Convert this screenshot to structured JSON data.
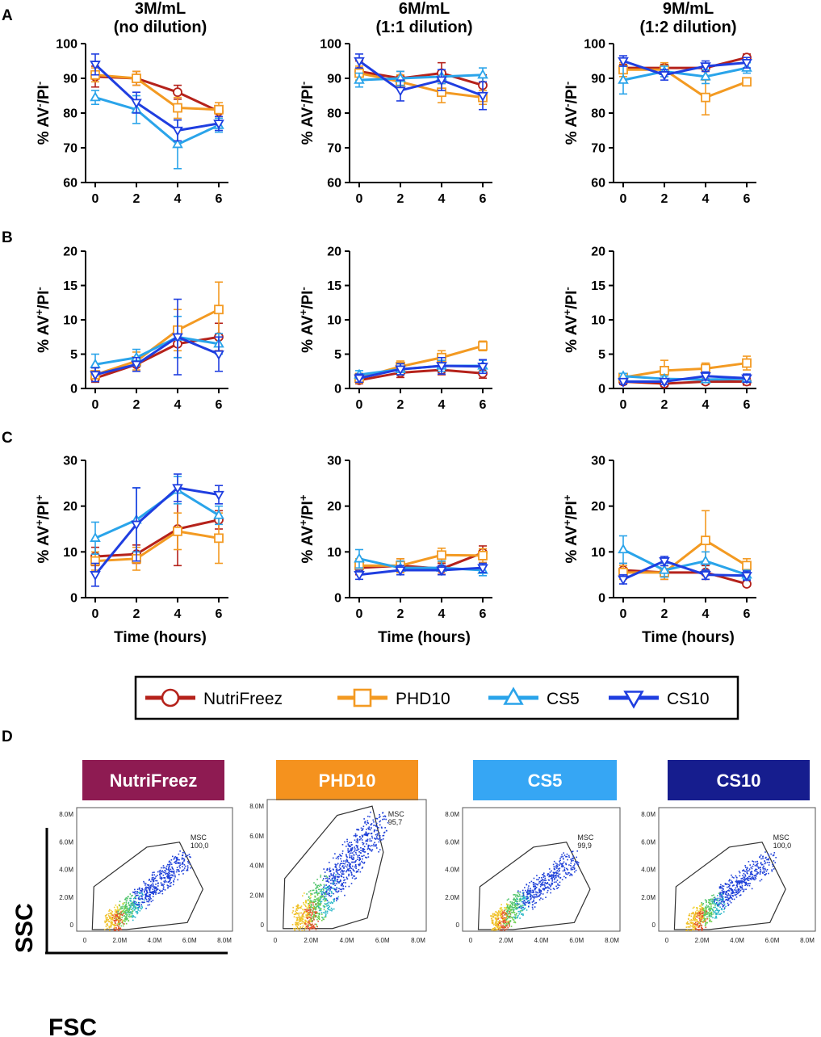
{
  "panel_labels": [
    "A",
    "B",
    "C",
    "D"
  ],
  "colors": {
    "NutriFreez": "#b5221b",
    "PHD10": "#f39a22",
    "CS5": "#2aa4ea",
    "CS10": "#1f3ee0",
    "hdr_NutriFreez": "#8e1b52",
    "hdr_PHD10": "#f5921e",
    "hdr_CS5": "#36a6f4",
    "hdr_CS10": "#161d8e"
  },
  "chart_data": [
    {
      "id": "A1",
      "type": "line",
      "title": [
        "3M/mL",
        "(no dilution)"
      ],
      "ylabel": [
        "% AV",
        "-",
        "/PI",
        "-"
      ],
      "xlabel": "",
      "ylim": [
        60,
        100
      ],
      "yticks": [
        60,
        70,
        80,
        90,
        100
      ],
      "x": [
        0,
        2,
        4,
        6
      ],
      "series": [
        {
          "name": "NutriFreez",
          "values": [
            90.5,
            90,
            86,
            80.5
          ],
          "err": [
            3,
            2,
            2,
            1.5
          ]
        },
        {
          "name": "PHD10",
          "values": [
            91,
            90,
            81.5,
            81
          ],
          "err": [
            2,
            2,
            3,
            2
          ]
        },
        {
          "name": "CS5",
          "values": [
            84.5,
            81,
            71,
            76.5
          ],
          "err": [
            2,
            4,
            7,
            2
          ]
        },
        {
          "name": "CS10",
          "values": [
            94,
            83,
            75,
            77
          ],
          "err": [
            3,
            3,
            3,
            2
          ]
        }
      ]
    },
    {
      "id": "A2",
      "type": "line",
      "title": [
        "6M/mL",
        "(1:1 dilution)"
      ],
      "ylabel": [
        "% AV",
        "-",
        "/PI",
        "-"
      ],
      "xlabel": "",
      "ylim": [
        60,
        100
      ],
      "yticks": [
        60,
        70,
        80,
        90,
        100
      ],
      "x": [
        0,
        2,
        4,
        6
      ],
      "series": [
        {
          "name": "NutriFreez",
          "values": [
            92,
            90,
            91.5,
            88
          ],
          "err": [
            3,
            2,
            3,
            3
          ]
        },
        {
          "name": "PHD10",
          "values": [
            91.5,
            89,
            86,
            84.5
          ],
          "err": [
            2,
            2,
            3,
            2
          ]
        },
        {
          "name": "CS5",
          "values": [
            89.5,
            90,
            90.5,
            91
          ],
          "err": [
            2,
            2,
            2,
            2
          ]
        },
        {
          "name": "CS10",
          "values": [
            95,
            86.5,
            89.5,
            85
          ],
          "err": [
            2,
            3,
            3,
            4
          ]
        }
      ]
    },
    {
      "id": "A3",
      "type": "line",
      "title": [
        "9M/mL",
        "(1:2 dilution)"
      ],
      "ylabel": [
        "% AV",
        "-",
        "/PI",
        "-"
      ],
      "xlabel": "",
      "ylim": [
        60,
        100
      ],
      "yticks": [
        60,
        70,
        80,
        90,
        100
      ],
      "x": [
        0,
        2,
        4,
        6
      ],
      "series": [
        {
          "name": "NutriFreez",
          "values": [
            93,
            93,
            93,
            96
          ],
          "err": [
            1,
            1,
            1,
            1
          ]
        },
        {
          "name": "PHD10",
          "values": [
            92.5,
            92.5,
            84.5,
            89
          ],
          "err": [
            2,
            2,
            5,
            1
          ]
        },
        {
          "name": "CS5",
          "values": [
            89.5,
            92,
            90.5,
            93
          ],
          "err": [
            4,
            1.5,
            2,
            1.5
          ]
        },
        {
          "name": "CS10",
          "values": [
            95,
            91,
            93.5,
            94.5
          ],
          "err": [
            1.5,
            1.5,
            1.5,
            1.5
          ]
        }
      ]
    },
    {
      "id": "B1",
      "type": "line",
      "title": [],
      "ylabel": [
        "% AV",
        "+",
        "/PI",
        "-"
      ],
      "xlabel": "",
      "ylim": [
        0,
        20
      ],
      "yticks": [
        0,
        5,
        10,
        15,
        20
      ],
      "x": [
        0,
        2,
        4,
        6
      ],
      "series": [
        {
          "name": "NutriFreez",
          "values": [
            1.5,
            3.5,
            6.5,
            7.5
          ],
          "err": [
            0.6,
            1,
            2,
            2
          ]
        },
        {
          "name": "PHD10",
          "values": [
            2,
            4,
            8.5,
            11.5
          ],
          "err": [
            1,
            1.3,
            3,
            4
          ]
        },
        {
          "name": "CS5",
          "values": [
            3.5,
            4.5,
            7.5,
            6.5
          ],
          "err": [
            1.5,
            1.2,
            3,
            1.5
          ]
        },
        {
          "name": "CS10",
          "values": [
            2,
            3.5,
            7.5,
            5
          ],
          "err": [
            1,
            1,
            5.5,
            2.5
          ]
        }
      ]
    },
    {
      "id": "B2",
      "type": "line",
      "title": [],
      "ylabel": [
        "% AV",
        "+",
        "/PI",
        "-"
      ],
      "xlabel": "",
      "ylim": [
        0,
        20
      ],
      "yticks": [
        0,
        5,
        10,
        15,
        20
      ],
      "x": [
        0,
        2,
        4,
        6
      ],
      "series": [
        {
          "name": "NutriFreez",
          "values": [
            1.2,
            2.3,
            2.7,
            2.2
          ],
          "err": [
            0.5,
            0.7,
            0.7,
            0.7
          ]
        },
        {
          "name": "PHD10",
          "values": [
            1.5,
            3.2,
            4.5,
            6.2
          ],
          "err": [
            0.7,
            0.8,
            1,
            0.7
          ]
        },
        {
          "name": "CS5",
          "values": [
            2,
            2.8,
            3.3,
            3.3
          ],
          "err": [
            0.6,
            0.8,
            0.8,
            0.8
          ]
        },
        {
          "name": "CS10",
          "values": [
            1.5,
            2.8,
            3.3,
            3.2
          ],
          "err": [
            0.6,
            0.8,
            1.2,
            1
          ]
        }
      ]
    },
    {
      "id": "B3",
      "type": "line",
      "title": [],
      "ylabel": [
        "% AV",
        "+",
        "/PI",
        "-"
      ],
      "xlabel": "",
      "ylim": [
        0,
        20
      ],
      "yticks": [
        0,
        5,
        10,
        15,
        20
      ],
      "x": [
        0,
        2,
        4,
        6
      ],
      "series": [
        {
          "name": "NutriFreez",
          "values": [
            1,
            0.7,
            1,
            1
          ],
          "err": [
            0.4,
            0.4,
            0.4,
            0.5
          ]
        },
        {
          "name": "PHD10",
          "values": [
            1.6,
            2.6,
            2.9,
            3.7
          ],
          "err": [
            0.5,
            1.5,
            0.8,
            1
          ]
        },
        {
          "name": "CS5",
          "values": [
            1.8,
            1.4,
            1.3,
            1.4
          ],
          "err": [
            0.4,
            0.4,
            0.4,
            0.5
          ]
        },
        {
          "name": "CS10",
          "values": [
            1,
            1,
            1.8,
            1.5
          ],
          "err": [
            0.4,
            0.4,
            0.6,
            0.6
          ]
        }
      ]
    },
    {
      "id": "C1",
      "type": "line",
      "title": [],
      "ylabel": [
        "% AV",
        "+",
        "/PI",
        "+"
      ],
      "xlabel": "Time (hours)",
      "ylim": [
        0,
        30
      ],
      "yticks": [
        0,
        10,
        20,
        30
      ],
      "x": [
        0,
        2,
        4,
        6
      ],
      "series": [
        {
          "name": "NutriFreez",
          "values": [
            9,
            9.5,
            15,
            17
          ],
          "err": [
            2,
            2,
            8,
            2
          ]
        },
        {
          "name": "PHD10",
          "values": [
            8,
            8.5,
            14.5,
            13
          ],
          "err": [
            2,
            2.5,
            4,
            5.5
          ]
        },
        {
          "name": "CS5",
          "values": [
            13,
            17,
            23.5,
            18
          ],
          "err": [
            3.5,
            7,
            3,
            2
          ]
        },
        {
          "name": "CS10",
          "values": [
            5,
            16,
            24,
            22.5
          ],
          "err": [
            2.5,
            8,
            3,
            2
          ]
        }
      ]
    },
    {
      "id": "C2",
      "type": "line",
      "title": [],
      "ylabel": [
        "% AV",
        "+",
        "/PI",
        "+"
      ],
      "xlabel": "Time (hours)",
      "ylim": [
        0,
        30
      ],
      "yticks": [
        0,
        10,
        20,
        30
      ],
      "x": [
        0,
        2,
        4,
        6
      ],
      "series": [
        {
          "name": "NutriFreez",
          "values": [
            6.5,
            7,
            6.3,
            9.8
          ],
          "err": [
            1.5,
            1.5,
            1.2,
            1.5
          ]
        },
        {
          "name": "PHD10",
          "values": [
            7,
            7,
            9.3,
            9.2
          ],
          "err": [
            1.5,
            1.5,
            1.5,
            1.5
          ]
        },
        {
          "name": "CS5",
          "values": [
            8.5,
            6.5,
            6.5,
            6
          ],
          "err": [
            2,
            1.5,
            1.5,
            1.2
          ]
        },
        {
          "name": "CS10",
          "values": [
            5,
            6,
            6,
            6.5
          ],
          "err": [
            1,
            1,
            1,
            1
          ]
        }
      ]
    },
    {
      "id": "C3",
      "type": "line",
      "title": [],
      "ylabel": [
        "% AV",
        "+",
        "/PI",
        "+"
      ],
      "xlabel": "Time (hours)",
      "ylim": [
        0,
        30
      ],
      "yticks": [
        0,
        10,
        20,
        30
      ],
      "x": [
        0,
        2,
        4,
        6
      ],
      "series": [
        {
          "name": "NutriFreez",
          "values": [
            6,
            5.5,
            5.5,
            3
          ],
          "err": [
            1.5,
            1.5,
            1.5,
            0.5
          ]
        },
        {
          "name": "PHD10",
          "values": [
            5.5,
            5.5,
            12.5,
            7
          ],
          "err": [
            1.5,
            1.5,
            6.5,
            1.5
          ]
        },
        {
          "name": "CS5",
          "values": [
            10.5,
            6,
            8,
            5
          ],
          "err": [
            3,
            1.5,
            2,
            1
          ]
        },
        {
          "name": "CS10",
          "values": [
            4,
            8,
            5,
            4.8
          ],
          "err": [
            1,
            1,
            1,
            1
          ]
        }
      ]
    }
  ],
  "legend": [
    "NutriFreez",
    "PHD10",
    "CS5",
    "CS10"
  ],
  "flow": {
    "panels": [
      {
        "name": "NutriFreez",
        "gate_label": "MSC",
        "gate_value": "100,0"
      },
      {
        "name": "PHD10",
        "gate_label": "MSC",
        "gate_value": "95,7"
      },
      {
        "name": "CS5",
        "gate_label": "MSC",
        "gate_value": "99,9"
      },
      {
        "name": "CS10",
        "gate_label": "MSC",
        "gate_value": "100,0"
      }
    ],
    "xticks": [
      "0",
      "2.0M",
      "4.0M",
      "6.0M",
      "8.0M"
    ],
    "yticks": [
      "0",
      "2.0M",
      "4.0M",
      "6.0M",
      "8.0M"
    ],
    "ssc_label": "SSC",
    "fsc_label": "FSC"
  }
}
